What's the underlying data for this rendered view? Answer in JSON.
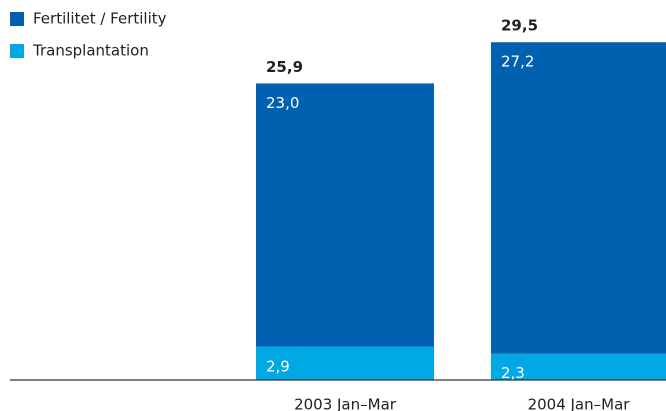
{
  "chart_data": {
    "type": "stacked_bar",
    "categories": [
      "2003 Jan–Mar",
      "2004 Jan–Mar"
    ],
    "series": [
      {
        "name": "Transplantation",
        "color": "#00a8e4",
        "values": [
          2.9,
          2.3
        ],
        "value_labels": [
          "2,9",
          "2,3"
        ]
      },
      {
        "name": "Fertilitet / Fertility",
        "color": "#0061b0",
        "values": [
          23.0,
          27.2
        ],
        "value_labels": [
          "23,0",
          "27,2"
        ]
      }
    ],
    "totals": [
      25.9,
      29.5
    ],
    "total_labels": [
      "25,9",
      "29,5"
    ],
    "legend": "top-left"
  }
}
